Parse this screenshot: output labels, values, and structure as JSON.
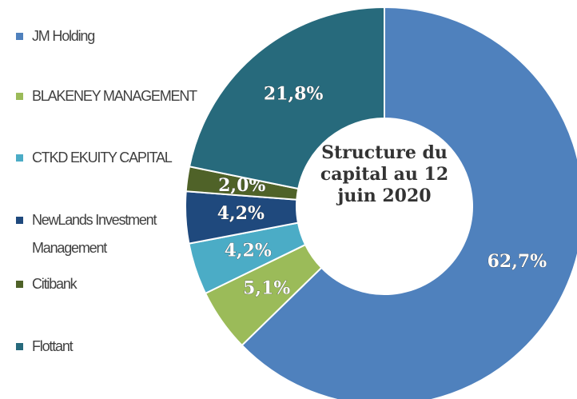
{
  "chart_data": {
    "type": "donut",
    "title": "Structure du capital au 12 juin 2020",
    "categories": [
      "JM Holding",
      "BLAKENEY MANAGEMENT",
      "CTKD EKUITY CAPITAL",
      "NewLands Investment Management",
      "Citibank",
      "Flottant"
    ],
    "values": [
      62.7,
      5.1,
      4.2,
      4.2,
      2.0,
      21.8
    ],
    "value_labels": [
      "62,7%",
      "5,1%",
      "4,2%",
      "4,2%",
      "2,0%",
      "21,8%"
    ],
    "colors": [
      "#4f81bd",
      "#9bbb59",
      "#4bacc6",
      "#1f497d",
      "#4f6228",
      "#276a7c"
    ],
    "legend": "left"
  }
}
